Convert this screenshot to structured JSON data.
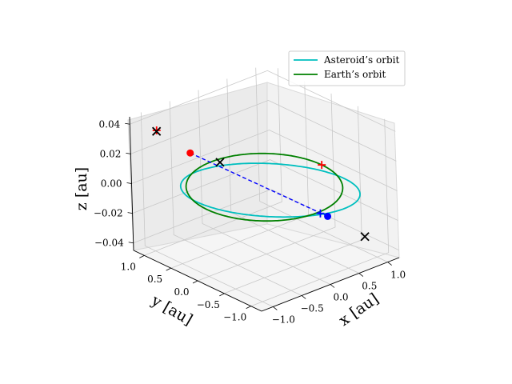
{
  "chart_data": {
    "type": "line3d",
    "xlabel": "x [au]",
    "ylabel": "y [au]",
    "zlabel": "z [au]",
    "xlim": [
      -1.2,
      1.2
    ],
    "ylim": [
      -1.2,
      1.2
    ],
    "zlim": [
      -0.045,
      0.045
    ],
    "x_ticks": [
      "−1.0",
      "−0.5",
      "0.0",
      "0.5",
      "1.0"
    ],
    "y_ticks": [
      "−1.0",
      "−0.5",
      "0.0",
      "0.5",
      "1.0"
    ],
    "z_ticks": [
      "−0.04",
      "−0.02",
      "0.00",
      "0.02",
      "0.04"
    ],
    "x_tick_values": [
      -1.0,
      -0.5,
      0.0,
      0.5,
      1.0
    ],
    "y_tick_values": [
      -1.0,
      -0.5,
      0.0,
      0.5,
      1.0
    ],
    "z_tick_values": [
      -0.04,
      -0.02,
      0.0,
      0.02,
      0.04
    ],
    "grid": true,
    "legend_position": "top-right",
    "series": [
      {
        "name": "Asteroid’s orbit",
        "color": "#00bfbf",
        "kind": "ellipse",
        "semi_major_axis": 1.15,
        "eccentricity": 0.12,
        "inclination_deg": 2.2,
        "long_asc_node_deg": 135,
        "arg_perihelion_deg": 60
      },
      {
        "name": "Earth’s orbit",
        "color": "#008000",
        "kind": "circle",
        "radius": 1.0
      }
    ],
    "markers": [
      {
        "kind": "dot",
        "color": "#ff0000",
        "x": -0.7,
        "y": 0.62,
        "z": 0.023
      },
      {
        "kind": "dot",
        "color": "#0000ff",
        "x": 0.55,
        "y": -0.58,
        "z": -0.018
      },
      {
        "kind": "plus",
        "color": "#0000ff",
        "x": 0.48,
        "y": -0.52,
        "z": -0.016
      },
      {
        "kind": "plus",
        "color": "#ff0000",
        "x": 1.0,
        "y": 0.0,
        "z": 0.0
      },
      {
        "kind": "plus",
        "color": "#ff0000",
        "x": -0.95,
        "y": 0.97,
        "z": 0.036
      },
      {
        "kind": "x",
        "color": "#000000",
        "x": -0.97,
        "y": 0.95,
        "z": 0.036
      },
      {
        "kind": "x",
        "color": "#000000",
        "x": -0.1,
        "y": 0.72,
        "z": 0.006
      },
      {
        "kind": "x",
        "color": "#000000",
        "x": 1.0,
        "y": -0.78,
        "z": -0.035
      }
    ],
    "dashed_line": {
      "color": "#0000ff",
      "from": [
        -0.7,
        0.62,
        0.023
      ],
      "to": [
        0.55,
        -0.58,
        -0.018
      ]
    }
  }
}
